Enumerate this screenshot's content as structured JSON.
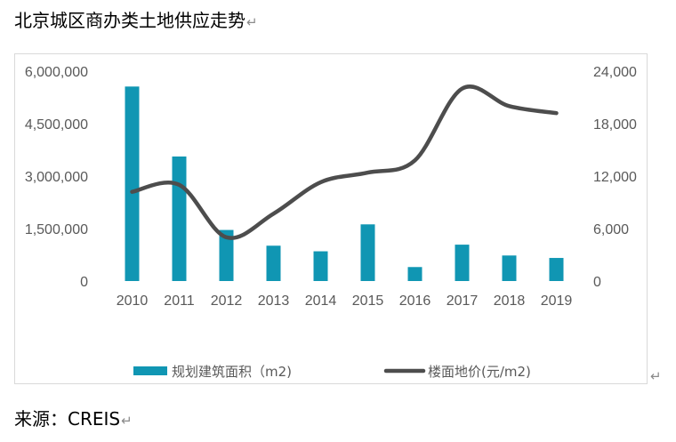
{
  "title": "北京城区商办类土地供应走势",
  "source": "来源：CREIS",
  "return_mark": "↵",
  "colors": {
    "bar": "#1096b3",
    "line": "#4d4d4d",
    "tick": "#595959",
    "frame": "#d9d9d9"
  },
  "chart_data": {
    "type": "bar",
    "categories": [
      "2010",
      "2011",
      "2012",
      "2013",
      "2014",
      "2015",
      "2016",
      "2017",
      "2018",
      "2019"
    ],
    "series": [
      {
        "name": "规划建筑面积（m2)",
        "type": "bar",
        "axis": "left",
        "values": [
          5560000,
          3560000,
          1460000,
          1010000,
          850000,
          1620000,
          400000,
          1040000,
          730000,
          660000
        ]
      },
      {
        "name": "楼面地价(元/m2)",
        "type": "line",
        "axis": "right",
        "smooth": true,
        "values": [
          10200,
          11000,
          5000,
          7700,
          11300,
          12400,
          13800,
          22000,
          20000,
          19200
        ]
      }
    ],
    "y_left": {
      "range": [
        0,
        6000000
      ],
      "ticks": [
        0,
        1500000,
        3000000,
        4500000,
        6000000
      ],
      "tick_labels": [
        "0",
        "1,500,000",
        "3,000,000",
        "4,500,000",
        "6,000,000"
      ]
    },
    "y_right": {
      "range": [
        0,
        24000
      ],
      "ticks": [
        0,
        6000,
        12000,
        18000,
        24000
      ],
      "tick_labels": [
        "0",
        "6,000",
        "12,000",
        "18,000",
        "24,000"
      ]
    },
    "grid": false,
    "legend": "bottom"
  }
}
